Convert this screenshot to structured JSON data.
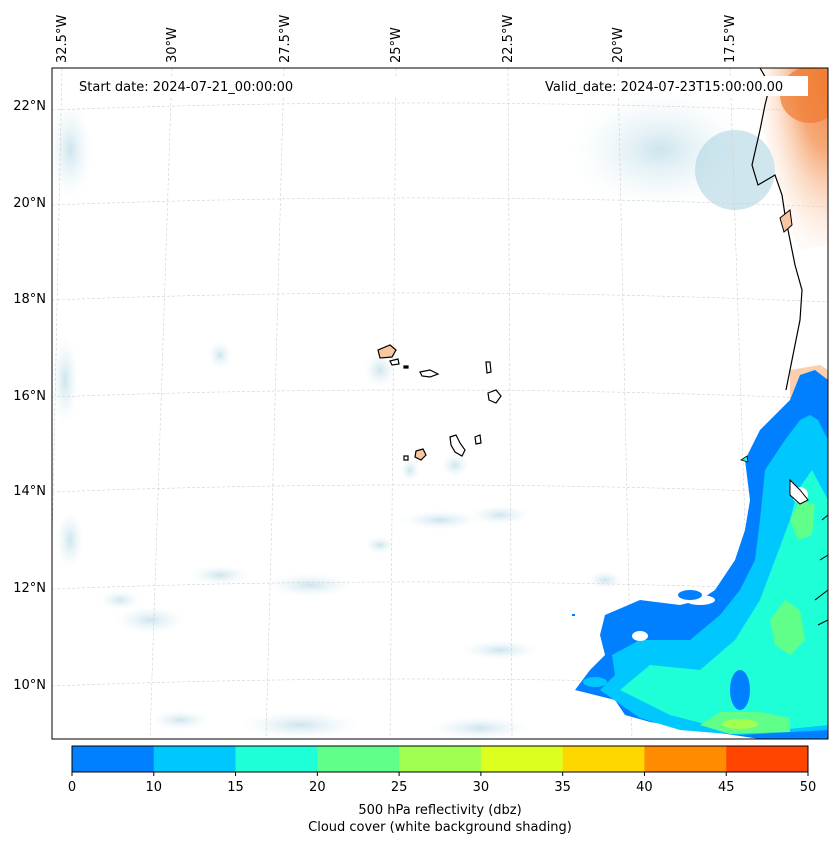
{
  "map": {
    "start_date_label": "Start date: 2024-07-21_00:00:00",
    "valid_date_label": "Valid_date: 2024-07-23T15:00:00.00",
    "longitude_labels": [
      "32.5°W",
      "30°W",
      "27.5°W",
      "25°W",
      "22.5°W",
      "20°W",
      "17.5°W"
    ],
    "latitude_labels": [
      "22°N",
      "20°N",
      "18°N",
      "16°N",
      "14°N",
      "12°N",
      "10°N"
    ],
    "region": "Cape Verde islands and West African coast"
  },
  "colorbar": {
    "ticks": [
      "0",
      "10",
      "15",
      "20",
      "25",
      "30",
      "35",
      "40",
      "45",
      "50"
    ],
    "colors": [
      "#0080ff",
      "#00c8ff",
      "#1effd8",
      "#60ff8a",
      "#a0ff50",
      "#dcff20",
      "#ffd700",
      "#ff8c00",
      "#ff4500"
    ],
    "label_line1": "500 hPa reflectivity (dbz)",
    "label_line2": "Cloud cover (white background shading)"
  }
}
